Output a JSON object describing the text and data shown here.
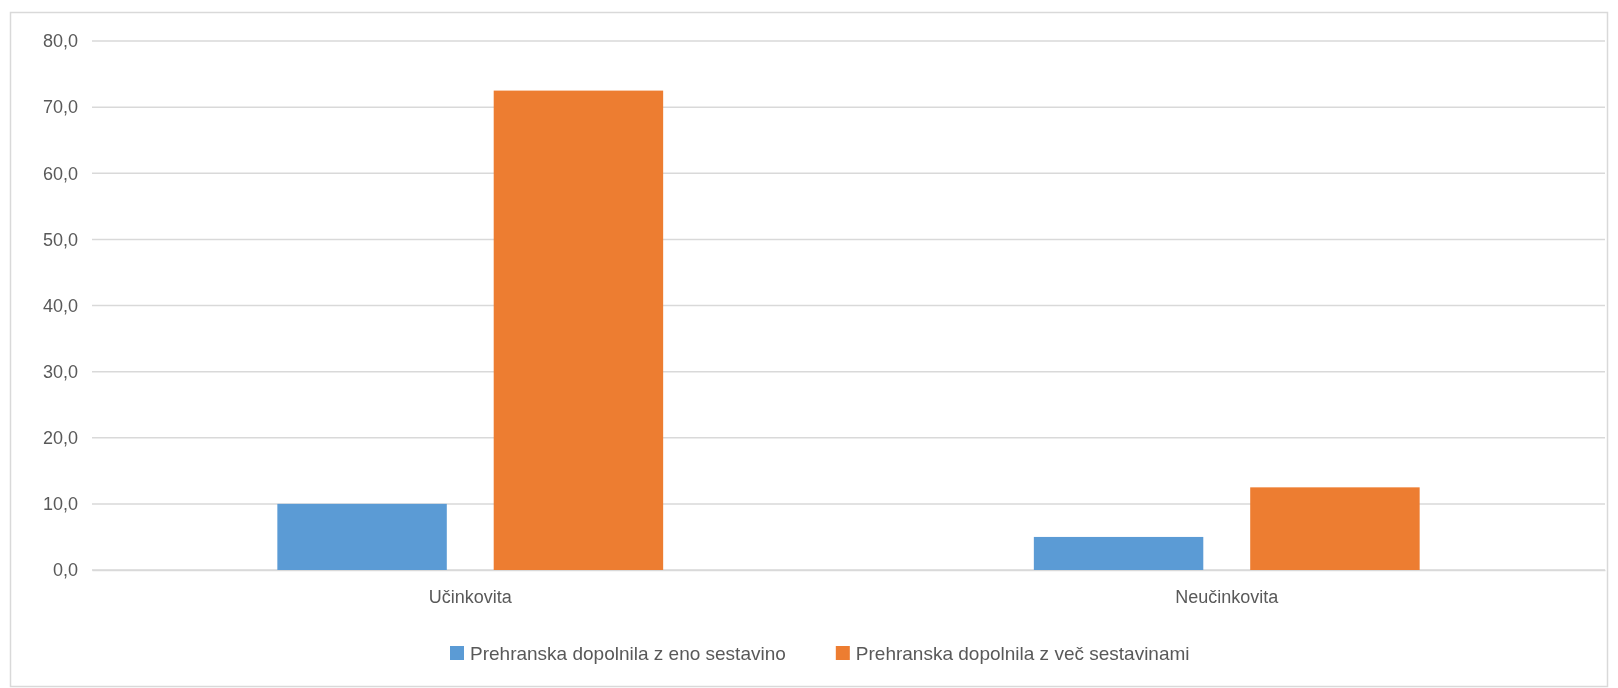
{
  "chart_data": {
    "type": "bar",
    "categories": [
      "Učinkovita",
      "Neučinkovita"
    ],
    "series": [
      {
        "name": "Prehranska dopolnila z eno sestavino",
        "color": "#5b9bd5",
        "values": [
          10.0,
          5.0
        ]
      },
      {
        "name": "Prehranska dopolnila z več sestavinami",
        "color": "#ed7d31",
        "values": [
          72.5,
          12.5
        ]
      }
    ],
    "ylim": [
      0,
      80
    ],
    "yticks": [
      {
        "value": 0,
        "label": "0,0"
      },
      {
        "value": 10,
        "label": "10,0"
      },
      {
        "value": 20,
        "label": "20,0"
      },
      {
        "value": 30,
        "label": "30,0"
      },
      {
        "value": 40,
        "label": "40,0"
      },
      {
        "value": 50,
        "label": "50,0"
      },
      {
        "value": 60,
        "label": "60,0"
      },
      {
        "value": 70,
        "label": "70,0"
      },
      {
        "value": 80,
        "label": "80,0"
      }
    ],
    "grid": "y",
    "legend": "bottom"
  }
}
